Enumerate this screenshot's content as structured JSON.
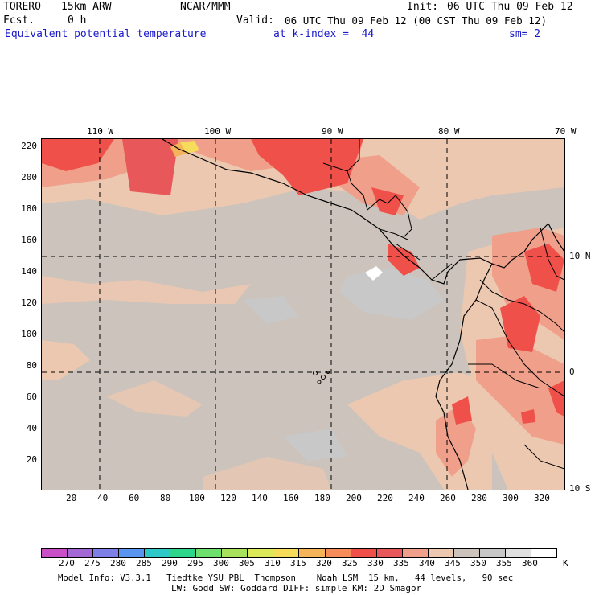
{
  "header": {
    "model": "TORERO",
    "resolution": "15km ARW",
    "org": "NCAR/MMM",
    "init_label": "Init:",
    "init_value": "06 UTC Thu 09 Feb 12",
    "fcst_label": "Fcst.",
    "fcst_value": "0 h",
    "valid_label": "Valid:",
    "valid_value": "06 UTC Thu 09 Feb 12 (00 CST Thu 09 Feb 12)",
    "field": "Equivalent potential temperature",
    "level": "at k-index =  44",
    "smoothing": "sm= 2"
  },
  "axes": {
    "top_lon": [
      "110 W",
      "100 W",
      "90 W",
      "80 W",
      "70 W"
    ],
    "right_lat": [
      "10 N",
      "0",
      "10 S"
    ],
    "left_y": [
      "220",
      "200",
      "180",
      "160",
      "140",
      "120",
      "100",
      "80",
      "60",
      "40",
      "20"
    ],
    "bottom_x": [
      "20",
      "40",
      "60",
      "80",
      "100",
      "120",
      "140",
      "160",
      "180",
      "200",
      "220",
      "240",
      "260",
      "280",
      "300",
      "320"
    ]
  },
  "colorbar": {
    "labels": [
      "270",
      "275",
      "280",
      "285",
      "290",
      "295",
      "300",
      "305",
      "310",
      "315",
      "320",
      "325",
      "330",
      "335",
      "340",
      "345",
      "350",
      "355",
      "360"
    ],
    "unit": "K",
    "colors": [
      "#c84fc8",
      "#a468d4",
      "#7f7fe8",
      "#5a96f0",
      "#2ec8c8",
      "#2ed68c",
      "#6ee06e",
      "#a8e25a",
      "#dcea5a",
      "#f5dc5a",
      "#f5b45a",
      "#f58c5a",
      "#f0504a",
      "#e8585a",
      "#f0a08a",
      "#ecc8b0",
      "#cbc3bc",
      "#c8c8c8",
      "#e0e0e0",
      "#ffffff"
    ]
  },
  "footer": {
    "line1": "Model Info: V3.3.1   Tiedtke YSU PBL  Thompson    Noah LSM  15 km,   44 levels,   90 sec",
    "line2": "LW: Godd SW: Goddard DIFF: simple KM: 2D Smagor"
  }
}
